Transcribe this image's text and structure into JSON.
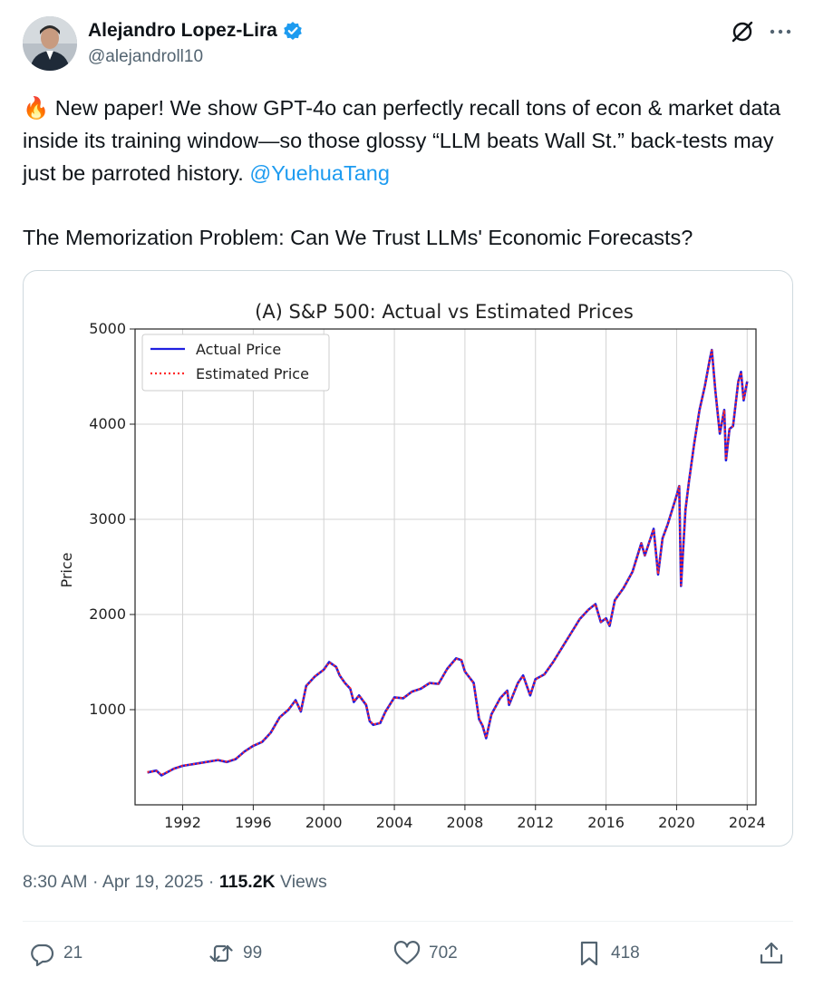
{
  "author": {
    "name": "Alejandro Lopez-Lira",
    "handle": "@alejandroll10",
    "verified": true
  },
  "tweet": {
    "emoji": "🔥",
    "text_main": " New paper! We show GPT-4o can perfectly recall tons of econ & market data inside its training window—so those glossy “LLM beats Wall St.” back-tests may just be parroted history. ",
    "mention": "@YuehuaTang",
    "paper_title": "The Memorization Problem: Can We Trust LLMs' Economic Forecasts?"
  },
  "meta": {
    "time": "8:30 AM",
    "separator": " · ",
    "date": "Apr 19, 2025",
    "views_count": "115.2K",
    "views_label": " Views"
  },
  "actions": {
    "replies": "21",
    "reposts": "99",
    "likes": "702",
    "bookmarks": "418"
  },
  "icons": {
    "reply": "reply-icon",
    "repost": "repost-icon",
    "like": "heart-icon",
    "bookmark": "bookmark-icon",
    "share": "share-icon",
    "grok": "grok-icon",
    "more": "more-icon"
  },
  "colors": {
    "accent": "#1d9bf0",
    "actual_line": "#1f1fe0",
    "estimated_line": "#ff2a2a"
  },
  "chart_data": {
    "type": "line",
    "title": "(A) S&P 500: Actual vs Estimated Prices",
    "xlabel": "",
    "ylabel": "Price",
    "xlim": [
      1989.3,
      2024.5
    ],
    "ylim": [
      0,
      5000
    ],
    "xticks": [
      "1992",
      "1996",
      "2000",
      "2004",
      "2008",
      "2012",
      "2016",
      "2020",
      "2024"
    ],
    "yticks": [
      "1000",
      "2000",
      "3000",
      "4000",
      "5000"
    ],
    "grid": true,
    "legend_position": "top-left",
    "series": [
      {
        "name": "Actual Price",
        "style": "solid",
        "points": [
          [
            1990.0,
            340
          ],
          [
            1990.5,
            360
          ],
          [
            1990.8,
            310
          ],
          [
            1991.0,
            330
          ],
          [
            1991.5,
            380
          ],
          [
            1992.0,
            410
          ],
          [
            1993.0,
            440
          ],
          [
            1994.0,
            470
          ],
          [
            1994.5,
            450
          ],
          [
            1995.0,
            480
          ],
          [
            1995.5,
            560
          ],
          [
            1996.0,
            620
          ],
          [
            1996.5,
            660
          ],
          [
            1997.0,
            760
          ],
          [
            1997.5,
            920
          ],
          [
            1998.0,
            1000
          ],
          [
            1998.4,
            1100
          ],
          [
            1998.7,
            980
          ],
          [
            1999.0,
            1250
          ],
          [
            1999.5,
            1350
          ],
          [
            2000.0,
            1420
          ],
          [
            2000.3,
            1500
          ],
          [
            2000.7,
            1450
          ],
          [
            2000.9,
            1360
          ],
          [
            2001.2,
            1280
          ],
          [
            2001.5,
            1220
          ],
          [
            2001.7,
            1080
          ],
          [
            2002.0,
            1150
          ],
          [
            2002.4,
            1050
          ],
          [
            2002.6,
            880
          ],
          [
            2002.8,
            840
          ],
          [
            2003.2,
            860
          ],
          [
            2003.5,
            980
          ],
          [
            2004.0,
            1130
          ],
          [
            2004.5,
            1120
          ],
          [
            2005.0,
            1190
          ],
          [
            2005.5,
            1220
          ],
          [
            2006.0,
            1280
          ],
          [
            2006.5,
            1270
          ],
          [
            2007.0,
            1430
          ],
          [
            2007.5,
            1540
          ],
          [
            2007.8,
            1520
          ],
          [
            2008.0,
            1400
          ],
          [
            2008.5,
            1280
          ],
          [
            2008.8,
            900
          ],
          [
            2009.0,
            830
          ],
          [
            2009.2,
            700
          ],
          [
            2009.5,
            950
          ],
          [
            2010.0,
            1120
          ],
          [
            2010.4,
            1200
          ],
          [
            2010.5,
            1050
          ],
          [
            2011.0,
            1280
          ],
          [
            2011.3,
            1360
          ],
          [
            2011.7,
            1150
          ],
          [
            2012.0,
            1320
          ],
          [
            2012.5,
            1370
          ],
          [
            2013.0,
            1500
          ],
          [
            2013.5,
            1650
          ],
          [
            2014.0,
            1800
          ],
          [
            2014.5,
            1950
          ],
          [
            2015.0,
            2050
          ],
          [
            2015.4,
            2110
          ],
          [
            2015.7,
            1920
          ],
          [
            2016.0,
            1960
          ],
          [
            2016.2,
            1880
          ],
          [
            2016.5,
            2150
          ],
          [
            2017.0,
            2280
          ],
          [
            2017.5,
            2450
          ],
          [
            2018.0,
            2750
          ],
          [
            2018.2,
            2620
          ],
          [
            2018.7,
            2900
          ],
          [
            2018.95,
            2420
          ],
          [
            2019.2,
            2800
          ],
          [
            2019.5,
            2950
          ],
          [
            2020.0,
            3250
          ],
          [
            2020.15,
            3350
          ],
          [
            2020.25,
            2300
          ],
          [
            2020.5,
            3100
          ],
          [
            2020.7,
            3400
          ],
          [
            2021.0,
            3800
          ],
          [
            2021.3,
            4150
          ],
          [
            2021.6,
            4400
          ],
          [
            2021.9,
            4700
          ],
          [
            2022.0,
            4780
          ],
          [
            2022.2,
            4350
          ],
          [
            2022.45,
            3900
          ],
          [
            2022.7,
            4150
          ],
          [
            2022.8,
            3620
          ],
          [
            2023.0,
            3950
          ],
          [
            2023.2,
            3980
          ],
          [
            2023.5,
            4450
          ],
          [
            2023.65,
            4550
          ],
          [
            2023.8,
            4250
          ],
          [
            2024.0,
            4450
          ]
        ]
      },
      {
        "name": "Estimated Price",
        "style": "dotted",
        "points": [
          [
            1990.0,
            345
          ],
          [
            1990.5,
            355
          ],
          [
            1990.8,
            315
          ],
          [
            1991.0,
            335
          ],
          [
            1991.5,
            378
          ],
          [
            1992.0,
            412
          ],
          [
            1993.0,
            438
          ],
          [
            1994.0,
            472
          ],
          [
            1994.5,
            452
          ],
          [
            1995.0,
            482
          ],
          [
            1995.5,
            558
          ],
          [
            1996.0,
            622
          ],
          [
            1996.5,
            662
          ],
          [
            1997.0,
            758
          ],
          [
            1997.5,
            918
          ],
          [
            1998.0,
            1005
          ],
          [
            1998.4,
            1095
          ],
          [
            1998.7,
            985
          ],
          [
            1999.0,
            1248
          ],
          [
            1999.5,
            1352
          ],
          [
            2000.0,
            1418
          ],
          [
            2000.3,
            1495
          ],
          [
            2000.7,
            1452
          ],
          [
            2000.9,
            1365
          ],
          [
            2001.2,
            1278
          ],
          [
            2001.5,
            1225
          ],
          [
            2001.7,
            1085
          ],
          [
            2002.0,
            1148
          ],
          [
            2002.4,
            1055
          ],
          [
            2002.6,
            885
          ],
          [
            2002.8,
            845
          ],
          [
            2003.2,
            862
          ],
          [
            2003.5,
            975
          ],
          [
            2004.0,
            1128
          ],
          [
            2004.5,
            1122
          ],
          [
            2005.0,
            1188
          ],
          [
            2005.5,
            1222
          ],
          [
            2006.0,
            1278
          ],
          [
            2006.5,
            1272
          ],
          [
            2007.0,
            1428
          ],
          [
            2007.5,
            1535
          ],
          [
            2007.8,
            1522
          ],
          [
            2008.0,
            1405
          ],
          [
            2008.5,
            1275
          ],
          [
            2008.8,
            905
          ],
          [
            2009.0,
            835
          ],
          [
            2009.2,
            705
          ],
          [
            2009.5,
            948
          ],
          [
            2010.0,
            1118
          ],
          [
            2010.4,
            1198
          ],
          [
            2010.5,
            1055
          ],
          [
            2011.0,
            1278
          ],
          [
            2011.3,
            1355
          ],
          [
            2011.7,
            1155
          ],
          [
            2012.0,
            1318
          ],
          [
            2012.5,
            1372
          ],
          [
            2013.0,
            1498
          ],
          [
            2013.5,
            1652
          ],
          [
            2014.0,
            1798
          ],
          [
            2014.5,
            1948
          ],
          [
            2015.0,
            2052
          ],
          [
            2015.4,
            2108
          ],
          [
            2015.7,
            1925
          ],
          [
            2016.0,
            1958
          ],
          [
            2016.2,
            1885
          ],
          [
            2016.5,
            2148
          ],
          [
            2017.0,
            2282
          ],
          [
            2017.5,
            2448
          ],
          [
            2018.0,
            2745
          ],
          [
            2018.2,
            2625
          ],
          [
            2018.7,
            2895
          ],
          [
            2018.95,
            2425
          ],
          [
            2019.2,
            2798
          ],
          [
            2019.5,
            2948
          ],
          [
            2020.0,
            3245
          ],
          [
            2020.15,
            3345
          ],
          [
            2020.25,
            2310
          ],
          [
            2020.5,
            3095
          ],
          [
            2020.7,
            3398
          ],
          [
            2021.0,
            3795
          ],
          [
            2021.3,
            4148
          ],
          [
            2021.6,
            4398
          ],
          [
            2021.9,
            4695
          ],
          [
            2022.0,
            4775
          ],
          [
            2022.2,
            4355
          ],
          [
            2022.45,
            3905
          ],
          [
            2022.7,
            4148
          ],
          [
            2022.8,
            3625
          ],
          [
            2023.0,
            3948
          ],
          [
            2023.2,
            3982
          ],
          [
            2023.5,
            4445
          ],
          [
            2023.65,
            4545
          ],
          [
            2023.8,
            4255
          ],
          [
            2024.0,
            4448
          ]
        ]
      }
    ]
  }
}
